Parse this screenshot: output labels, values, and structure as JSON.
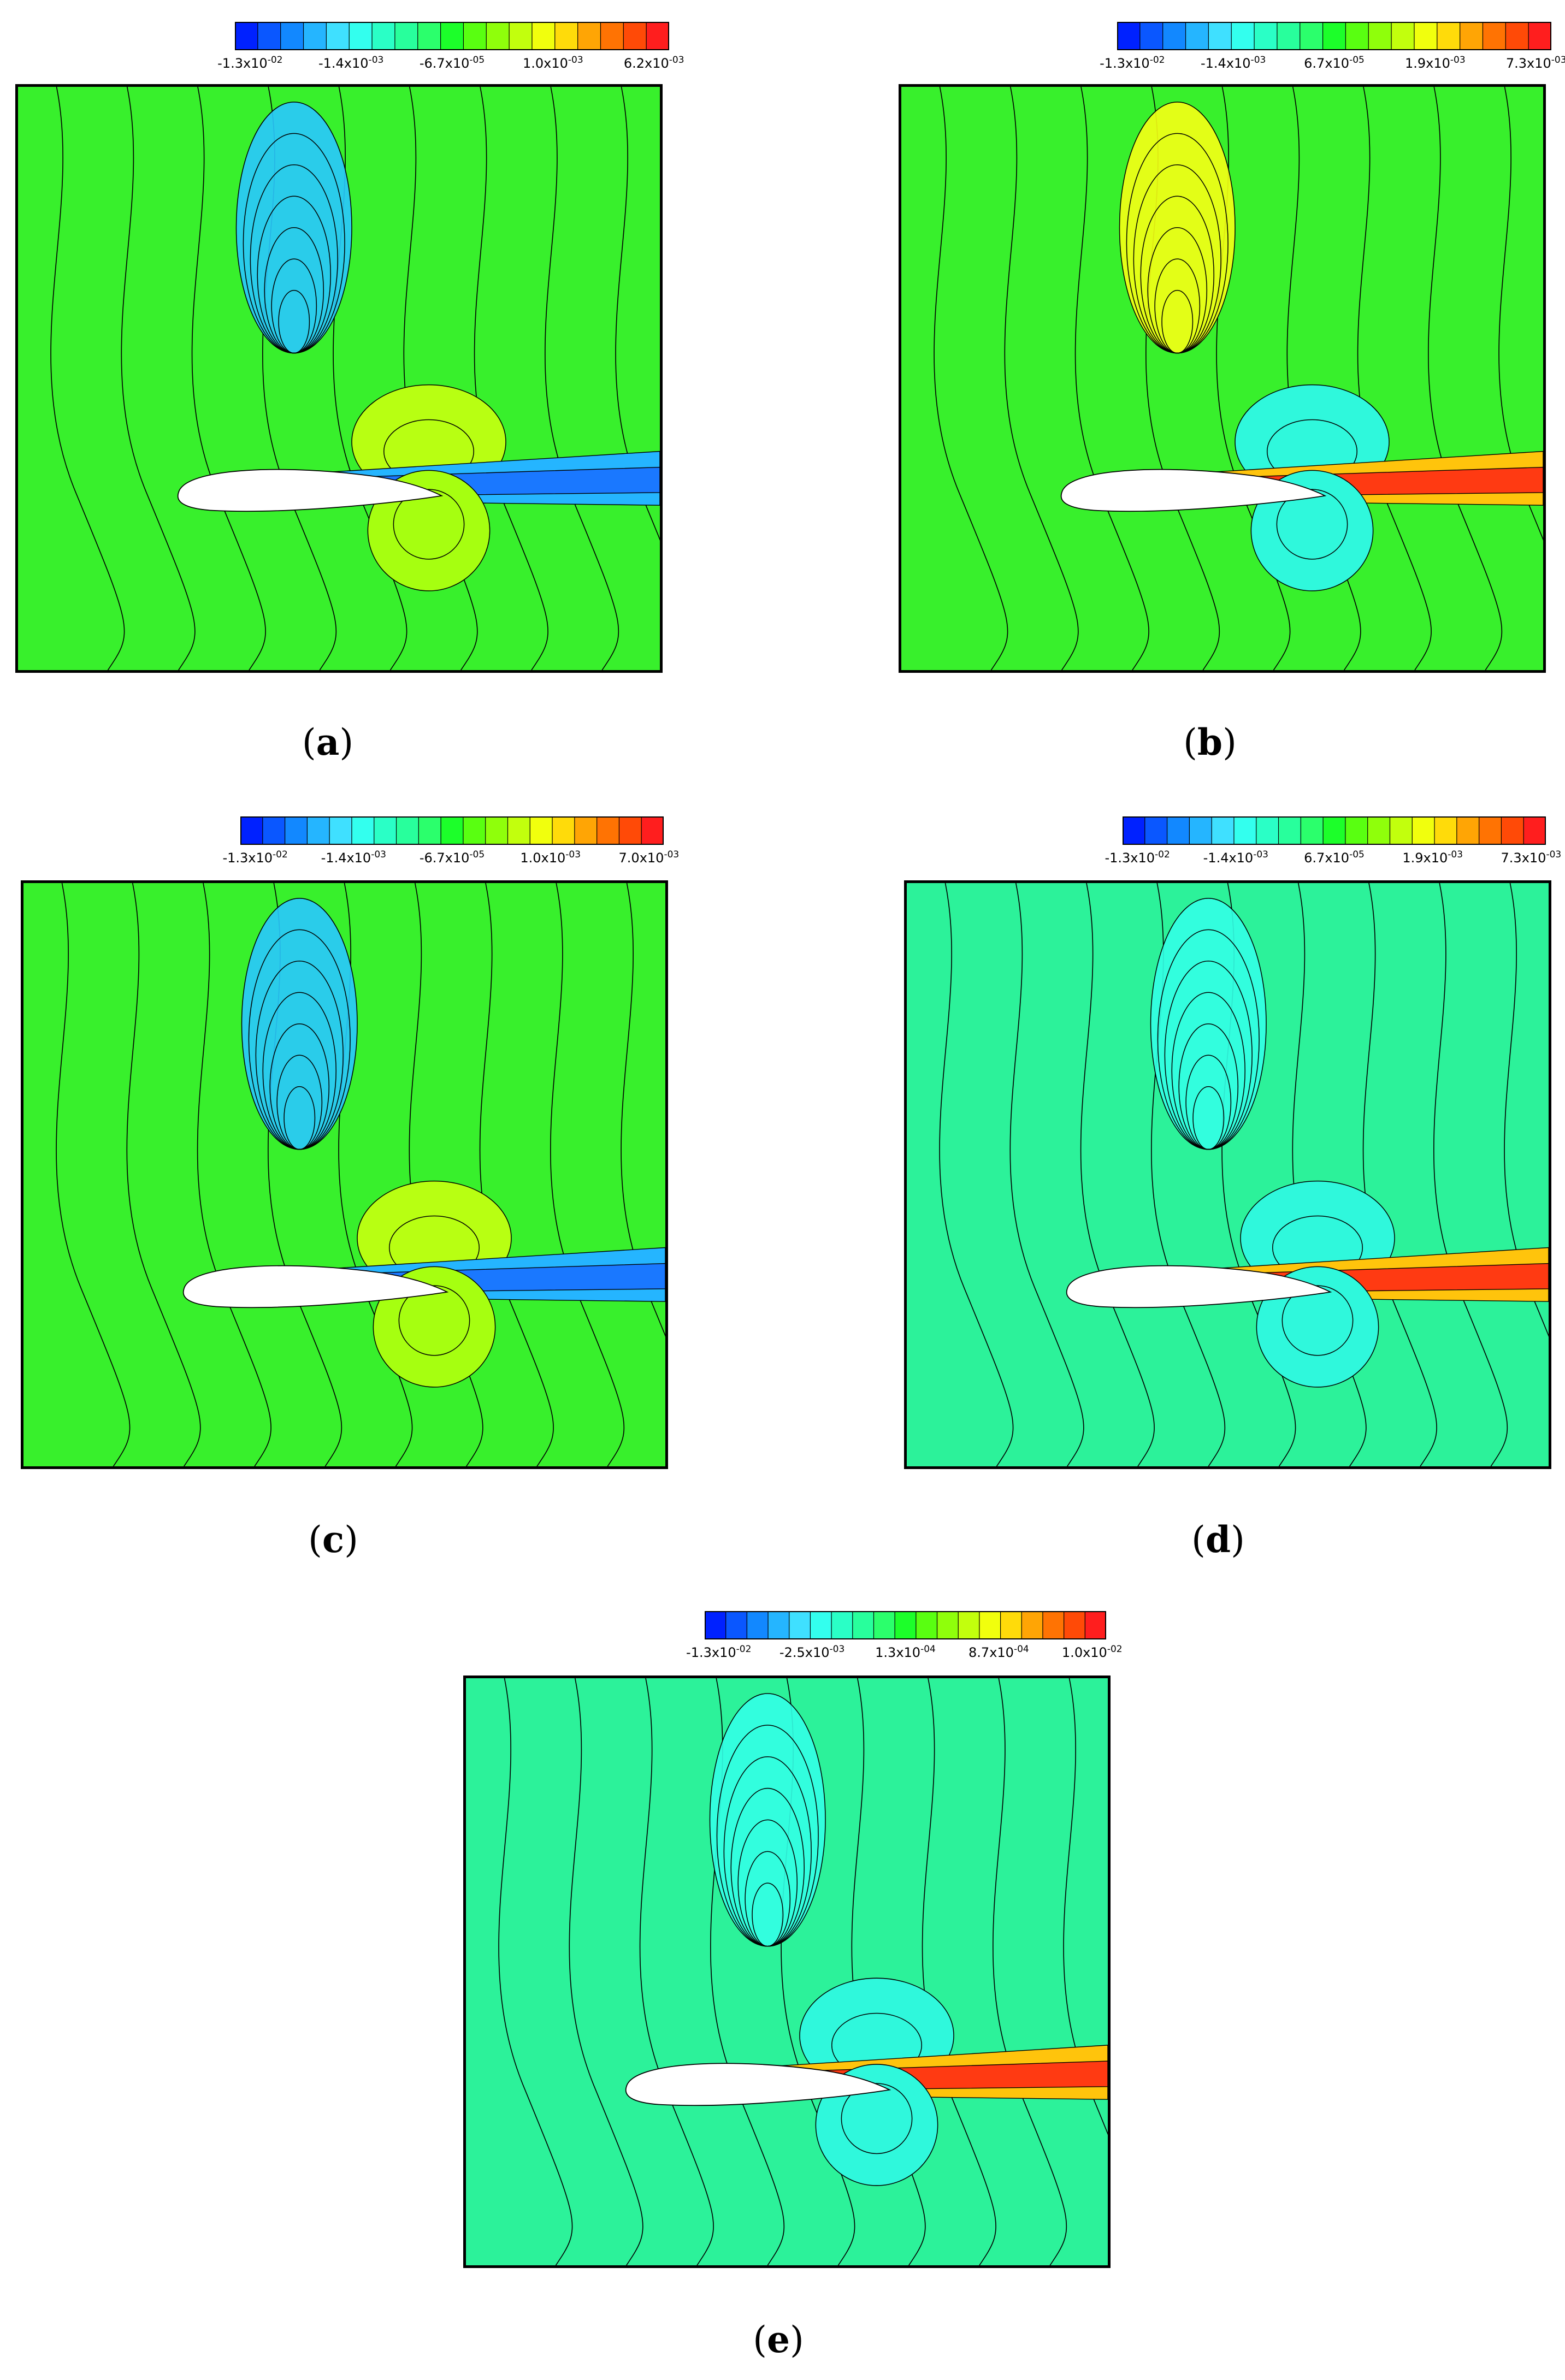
{
  "chart_data": [
    {
      "type": "heatmap",
      "caption_letter": "a",
      "colorbar": {
        "colors": [
          "#0021ff",
          "#0a57ff",
          "#1288ff",
          "#25b5ff",
          "#3fe0ff",
          "#33ffee",
          "#2affc6",
          "#28ff9c",
          "#2bff6c",
          "#1cff2a",
          "#59ff11",
          "#8fff0b",
          "#c2ff0d",
          "#f1ff0d",
          "#ffdb0a",
          "#ffa505",
          "#ff7303",
          "#ff4a07",
          "#ff1e1e"
        ],
        "ticks": [
          "-1.3x10^-02",
          "-1.4x10^-03",
          "-6.7x10^-05",
          "1.0x10^-03",
          "6.2x10^-03"
        ]
      },
      "variant": "negative-wake"
    },
    {
      "type": "heatmap",
      "caption_letter": "b",
      "colorbar": {
        "colors": [
          "#0021ff",
          "#0a57ff",
          "#1288ff",
          "#25b5ff",
          "#3fe0ff",
          "#33ffee",
          "#2affc6",
          "#28ff9c",
          "#2bff6c",
          "#1cff2a",
          "#59ff11",
          "#8fff0b",
          "#c2ff0d",
          "#f1ff0d",
          "#ffdb0a",
          "#ffa505",
          "#ff7303",
          "#ff4a07",
          "#ff1e1e"
        ],
        "ticks": [
          "-1.3x10^-02",
          "-1.4x10^-03",
          "6.7x10^-05",
          "1.9x10^-03",
          "7.3x10^-03"
        ]
      },
      "variant": "positive-wake"
    },
    {
      "type": "heatmap",
      "caption_letter": "c",
      "colorbar": {
        "colors": [
          "#0021ff",
          "#0a57ff",
          "#1288ff",
          "#25b5ff",
          "#3fe0ff",
          "#33ffee",
          "#2affc6",
          "#28ff9c",
          "#2bff6c",
          "#1cff2a",
          "#59ff11",
          "#8fff0b",
          "#c2ff0d",
          "#f1ff0d",
          "#ffdb0a",
          "#ffa505",
          "#ff7303",
          "#ff4a07",
          "#ff1e1e"
        ],
        "ticks": [
          "-1.3x10^-02",
          "-1.4x10^-03",
          "-6.7x10^-05",
          "1.0x10^-03",
          "7.0x10^-03"
        ]
      },
      "variant": "negative-wake"
    },
    {
      "type": "heatmap",
      "caption_letter": "d",
      "colorbar": {
        "colors": [
          "#0021ff",
          "#0a57ff",
          "#1288ff",
          "#25b5ff",
          "#3fe0ff",
          "#33ffee",
          "#2affc6",
          "#28ff9c",
          "#2bff6c",
          "#1cff2a",
          "#59ff11",
          "#8fff0b",
          "#c2ff0d",
          "#f1ff0d",
          "#ffdb0a",
          "#ffa505",
          "#ff7303",
          "#ff4a07",
          "#ff1e1e"
        ],
        "ticks": [
          "-1.3x10^-02",
          "-1.4x10^-03",
          "6.7x10^-05",
          "1.9x10^-03",
          "7.3x10^-03"
        ]
      },
      "variant": "positive-wake-cyan"
    },
    {
      "type": "heatmap",
      "caption_letter": "e",
      "colorbar": {
        "colors": [
          "#0021ff",
          "#0a57ff",
          "#1288ff",
          "#25b5ff",
          "#3fe0ff",
          "#33ffee",
          "#2affc6",
          "#28ff9c",
          "#2bff6c",
          "#1cff2a",
          "#59ff11",
          "#8fff0b",
          "#c2ff0d",
          "#f1ff0d",
          "#ffdb0a",
          "#ffa505",
          "#ff7303",
          "#ff4a07",
          "#ff1e1e"
        ],
        "ticks": [
          "-1.3x10^-02",
          "-2.5x10^-03",
          "1.3x10^-04",
          "8.7x10^-04",
          "1.0x10^-02"
        ]
      },
      "variant": "positive-wake-cyan"
    }
  ]
}
